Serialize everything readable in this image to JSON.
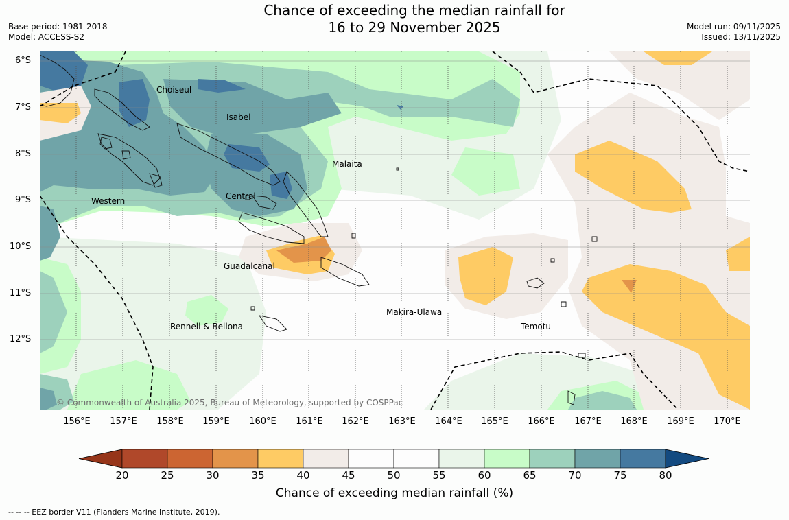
{
  "title": {
    "line1": "Chance of exceeding the median rainfall for",
    "line2": "16 to 29 November 2025"
  },
  "meta_left": {
    "base_period": "Base period: 1981-2018",
    "model": "Model: ACCESS-S2"
  },
  "meta_right": {
    "model_run": "Model run: 09/11/2025",
    "issued": "Issued: 13/11/2025"
  },
  "latitudes": [
    "6°S",
    "7°S",
    "8°S",
    "9°S",
    "10°S",
    "11°S",
    "12°S"
  ],
  "longitudes": [
    "156°E",
    "157°E",
    "158°E",
    "159°E",
    "160°E",
    "161°E",
    "162°E",
    "163°E",
    "164°E",
    "165°E",
    "166°E",
    "167°E",
    "168°E",
    "169°E",
    "170°E"
  ],
  "provinces": {
    "choiseul": "Choiseul",
    "isabel": "Isabel",
    "malaita": "Malaita",
    "western": "Western",
    "central": "Central",
    "guadalcanal": "Guadalcanal",
    "makira": "Makira-Ulawa",
    "rennell": "Rennell & Bellona",
    "temotu": "Temotu"
  },
  "copyright": "© Commonwealth of Australia 2025, Bureau of Meteorology, supported by COSPPac",
  "colorbar": {
    "title": "Chance of exceeding median rainfall (%)",
    "ticks": [
      "20",
      "25",
      "30",
      "35",
      "40",
      "45",
      "50",
      "55",
      "60",
      "65",
      "70",
      "75",
      "80"
    ],
    "colors": [
      "#b0482a",
      "#cc6532",
      "#e3944a",
      "#fecb64",
      "#f2ece8",
      "#fdfdfd",
      "#fdfdfd",
      "#eaf5ea",
      "#c8fcc8",
      "#9dd1bc",
      "#70a4a8",
      "#4579a0"
    ],
    "under_color": "#963519",
    "over_color": "#134a80"
  },
  "footnote": "--  --  -- EEZ border V11 (Flanders Marine Institute, 2019)."
}
